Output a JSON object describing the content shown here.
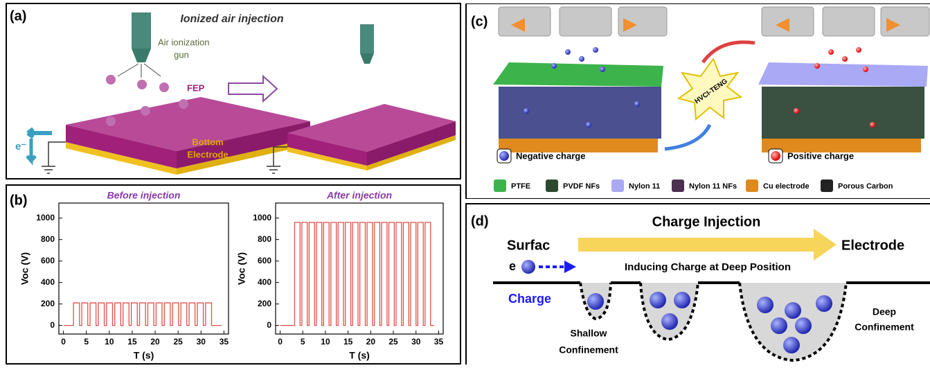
{
  "panel_a": {
    "label": "(a)",
    "title": "Ionized air injection",
    "gun_label": [
      "Air ionization",
      "gun"
    ],
    "fep_label": "FEP",
    "electron_label": "e⁻",
    "electrode_label": [
      "Bottom",
      "Electrode"
    ]
  },
  "panel_b": {
    "label": "(b)"
  },
  "chart_data": [
    {
      "type": "line",
      "title": "Before injection",
      "x_label": "T (s)",
      "y_label": "Voc (V)",
      "color": "#e0504a",
      "x": [
        0,
        2.2,
        2.2,
        3.5,
        3.5,
        4.0,
        4.0,
        5.3,
        5.3,
        5.8,
        5.8,
        7.1,
        7.1,
        7.6,
        7.6,
        8.9,
        8.9,
        9.4,
        9.4,
        10.7,
        10.7,
        11.2,
        11.2,
        12.5,
        12.5,
        13.0,
        13.0,
        14.3,
        14.3,
        14.8,
        14.8,
        16.1,
        16.1,
        16.6,
        16.6,
        17.9,
        17.9,
        18.4,
        18.4,
        19.7,
        19.7,
        20.2,
        20.2,
        21.5,
        21.5,
        22.0,
        22.0,
        23.3,
        23.3,
        23.8,
        23.8,
        25.1,
        25.1,
        25.6,
        25.6,
        26.9,
        26.9,
        27.4,
        27.4,
        28.7,
        28.7,
        29.2,
        29.2,
        30.5,
        30.5,
        31.0,
        31.0,
        32.3,
        32.3,
        34.5
      ],
      "values": [
        0,
        0,
        210,
        210,
        0,
        0,
        210,
        210,
        0,
        0,
        210,
        210,
        0,
        0,
        210,
        210,
        0,
        0,
        210,
        210,
        0,
        0,
        210,
        210,
        0,
        0,
        210,
        210,
        0,
        0,
        210,
        210,
        0,
        0,
        210,
        210,
        0,
        0,
        210,
        210,
        0,
        0,
        210,
        210,
        0,
        0,
        210,
        210,
        0,
        0,
        210,
        210,
        0,
        0,
        210,
        210,
        0,
        0,
        210,
        210,
        0,
        0,
        210,
        210,
        0,
        0,
        210,
        210,
        0,
        0
      ],
      "xlim": [
        -1,
        36
      ],
      "xticks": [
        0,
        5,
        10,
        15,
        20,
        25,
        30,
        35
      ],
      "ylim": [
        -80,
        1140
      ],
      "yticks": [
        0,
        200,
        400,
        600,
        800,
        1000
      ]
    },
    {
      "type": "line",
      "title": "After injection",
      "x_label": "T (s)",
      "y_label": "Voc (V)",
      "color": "#e0504a",
      "x": [
        0,
        3.2,
        3.2,
        4.4,
        4.4,
        4.8,
        4.8,
        6.0,
        6.0,
        6.4,
        6.4,
        7.6,
        7.6,
        8.0,
        8.0,
        9.2,
        9.2,
        9.6,
        9.6,
        10.8,
        10.8,
        11.2,
        11.2,
        12.4,
        12.4,
        12.8,
        12.8,
        14.0,
        14.0,
        14.4,
        14.4,
        15.6,
        15.6,
        16.0,
        16.0,
        17.2,
        17.2,
        17.6,
        17.6,
        18.8,
        18.8,
        19.2,
        19.2,
        20.4,
        20.4,
        20.8,
        20.8,
        22.0,
        22.0,
        22.4,
        22.4,
        23.6,
        23.6,
        24.0,
        24.0,
        25.2,
        25.2,
        25.6,
        25.6,
        26.8,
        26.8,
        27.2,
        27.2,
        28.4,
        28.4,
        28.8,
        28.8,
        30.0,
        30.0,
        30.4,
        30.4,
        31.6,
        31.6,
        32.0,
        32.0,
        33.2,
        33.2,
        34.0
      ],
      "values": [
        0,
        0,
        960,
        960,
        0,
        0,
        960,
        960,
        0,
        0,
        960,
        960,
        0,
        0,
        960,
        960,
        0,
        0,
        960,
        960,
        0,
        0,
        960,
        960,
        0,
        0,
        960,
        960,
        0,
        0,
        960,
        960,
        0,
        0,
        960,
        960,
        0,
        0,
        960,
        960,
        0,
        0,
        960,
        960,
        0,
        0,
        960,
        960,
        0,
        0,
        960,
        960,
        0,
        0,
        960,
        960,
        0,
        0,
        960,
        960,
        0,
        0,
        960,
        960,
        0,
        0,
        960,
        960,
        0,
        0,
        960,
        960,
        0,
        0,
        960,
        960,
        0,
        0
      ],
      "xlim": [
        -1,
        36
      ],
      "xticks": [
        0,
        5,
        10,
        15,
        20,
        25,
        30,
        35
      ],
      "ylim": [
        -80,
        1140
      ],
      "yticks": [
        0,
        200,
        400,
        600,
        800,
        1000
      ]
    }
  ],
  "panel_c": {
    "label": "(c)",
    "star_label": "HVCI-TENG",
    "negative": "Negative charge",
    "positive": "Positive charge",
    "legend": [
      {
        "name": "PTFE",
        "color": "#3cb44b"
      },
      {
        "name": "PVDF NFs",
        "color": "#2e4a2e"
      },
      {
        "name": "Nylon 11",
        "color": "#a9a9f5"
      },
      {
        "name": "Nylon 11 NFs",
        "color": "#4b3050"
      },
      {
        "name": "Cu electrode",
        "color": "#e08a1e"
      },
      {
        "name": "Porous Carbon",
        "color": "#222222"
      }
    ]
  },
  "panel_d": {
    "label": "(d)",
    "title": "Charge Injection",
    "left": "Surfac",
    "right": "Electrode",
    "electron": "e",
    "inducing": "Inducing Charge at Deep Position",
    "charge": "Charge",
    "shallow": [
      "Shallow",
      "Confinement"
    ],
    "deep": [
      "Deep",
      "Confinement"
    ]
  }
}
